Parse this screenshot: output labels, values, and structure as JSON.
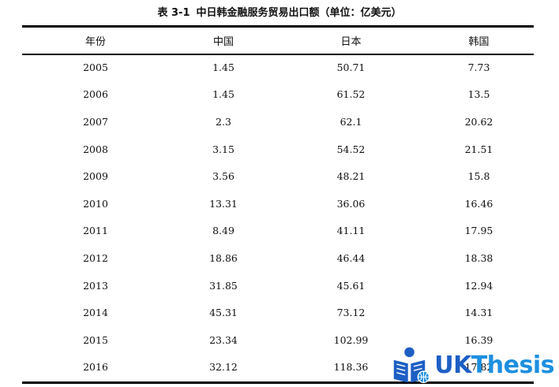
{
  "caption": {
    "number": "表 3-1",
    "title": "中日韩金融服务贸易出口额（单位：亿美元）"
  },
  "table": {
    "headers": [
      "年份",
      "中国",
      "日本",
      "韩国"
    ],
    "rows": [
      [
        "2005",
        "1.45",
        "50.71",
        "7.73"
      ],
      [
        "2006",
        "1.45",
        "61.52",
        "13.5"
      ],
      [
        "2007",
        "2.3",
        "62.1",
        "20.62"
      ],
      [
        "2008",
        "3.15",
        "54.52",
        "21.51"
      ],
      [
        "2009",
        "3.56",
        "48.21",
        "15.8"
      ],
      [
        "2010",
        "13.31",
        "36.06",
        "16.46"
      ],
      [
        "2011",
        "8.49",
        "41.11",
        "17.95"
      ],
      [
        "2012",
        "18.86",
        "46.44",
        "18.38"
      ],
      [
        "2013",
        "31.85",
        "45.61",
        "12.94"
      ],
      [
        "2014",
        "45.31",
        "73.12",
        "14.31"
      ],
      [
        "2015",
        "23.34",
        "102.99",
        "16.39"
      ],
      [
        "2016",
        "32.12",
        "118.36",
        "17.82"
      ]
    ]
  },
  "watermark": {
    "text_uk": "UK",
    "text_thesis": "Thesis",
    "colors": {
      "primary": "#1d5fc4",
      "secondary": "#1d8fe0"
    }
  }
}
